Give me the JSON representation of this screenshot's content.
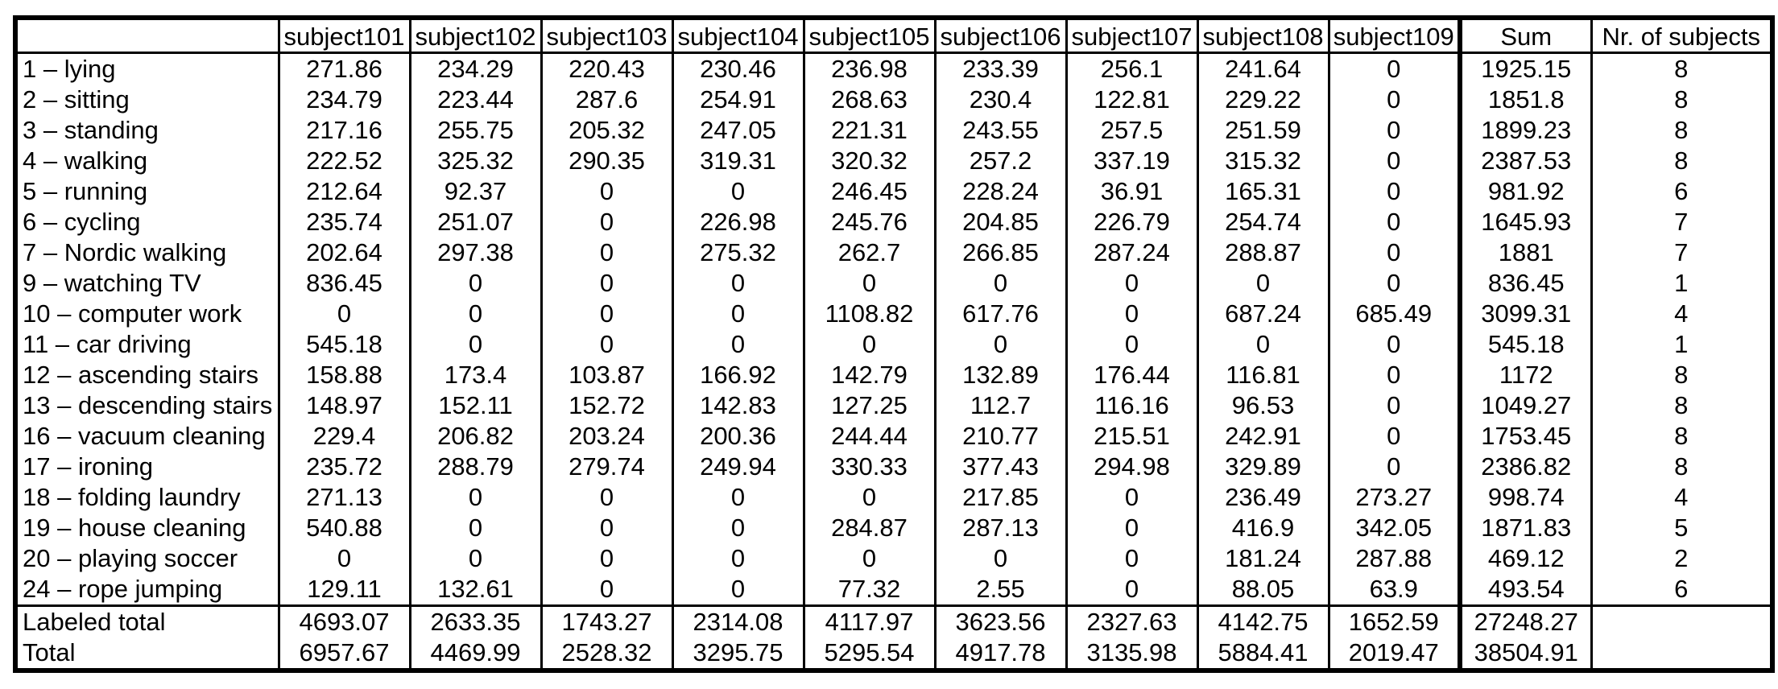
{
  "table": {
    "corner": "",
    "columns": [
      "subject101",
      "subject102",
      "subject103",
      "subject104",
      "subject105",
      "subject106",
      "subject107",
      "subject108",
      "subject109",
      "Sum",
      "Nr. of subjects"
    ],
    "rows": [
      {
        "activity": "1 – lying",
        "values": [
          "271.86",
          "234.29",
          "220.43",
          "230.46",
          "236.98",
          "233.39",
          "256.1",
          "241.64",
          "0",
          "1925.15",
          "8"
        ]
      },
      {
        "activity": "2 – sitting",
        "values": [
          "234.79",
          "223.44",
          "287.6",
          "254.91",
          "268.63",
          "230.4",
          "122.81",
          "229.22",
          "0",
          "1851.8",
          "8"
        ]
      },
      {
        "activity": "3 – standing",
        "values": [
          "217.16",
          "255.75",
          "205.32",
          "247.05",
          "221.31",
          "243.55",
          "257.5",
          "251.59",
          "0",
          "1899.23",
          "8"
        ]
      },
      {
        "activity": "4 – walking",
        "values": [
          "222.52",
          "325.32",
          "290.35",
          "319.31",
          "320.32",
          "257.2",
          "337.19",
          "315.32",
          "0",
          "2387.53",
          "8"
        ]
      },
      {
        "activity": "5 – running",
        "values": [
          "212.64",
          "92.37",
          "0",
          "0",
          "246.45",
          "228.24",
          "36.91",
          "165.31",
          "0",
          "981.92",
          "6"
        ]
      },
      {
        "activity": "6 – cycling",
        "values": [
          "235.74",
          "251.07",
          "0",
          "226.98",
          "245.76",
          "204.85",
          "226.79",
          "254.74",
          "0",
          "1645.93",
          "7"
        ]
      },
      {
        "activity": "7 – Nordic walking",
        "values": [
          "202.64",
          "297.38",
          "0",
          "275.32",
          "262.7",
          "266.85",
          "287.24",
          "288.87",
          "0",
          "1881",
          "7"
        ]
      },
      {
        "activity": "9 – watching TV",
        "values": [
          "836.45",
          "0",
          "0",
          "0",
          "0",
          "0",
          "0",
          "0",
          "0",
          "836.45",
          "1"
        ]
      },
      {
        "activity": "10 – computer work",
        "values": [
          "0",
          "0",
          "0",
          "0",
          "1108.82",
          "617.76",
          "0",
          "687.24",
          "685.49",
          "3099.31",
          "4"
        ]
      },
      {
        "activity": "11 – car driving",
        "values": [
          "545.18",
          "0",
          "0",
          "0",
          "0",
          "0",
          "0",
          "0",
          "0",
          "545.18",
          "1"
        ]
      },
      {
        "activity": "12 – ascending stairs",
        "values": [
          "158.88",
          "173.4",
          "103.87",
          "166.92",
          "142.79",
          "132.89",
          "176.44",
          "116.81",
          "0",
          "1172",
          "8"
        ]
      },
      {
        "activity": "13 – descending stairs",
        "values": [
          "148.97",
          "152.11",
          "152.72",
          "142.83",
          "127.25",
          "112.7",
          "116.16",
          "96.53",
          "0",
          "1049.27",
          "8"
        ]
      },
      {
        "activity": "16 – vacuum cleaning",
        "values": [
          "229.4",
          "206.82",
          "203.24",
          "200.36",
          "244.44",
          "210.77",
          "215.51",
          "242.91",
          "0",
          "1753.45",
          "8"
        ]
      },
      {
        "activity": "17 – ironing",
        "values": [
          "235.72",
          "288.79",
          "279.74",
          "249.94",
          "330.33",
          "377.43",
          "294.98",
          "329.89",
          "0",
          "2386.82",
          "8"
        ]
      },
      {
        "activity": "18 – folding laundry",
        "values": [
          "271.13",
          "0",
          "0",
          "0",
          "0",
          "217.85",
          "0",
          "236.49",
          "273.27",
          "998.74",
          "4"
        ]
      },
      {
        "activity": "19 – house cleaning",
        "values": [
          "540.88",
          "0",
          "0",
          "0",
          "284.87",
          "287.13",
          "0",
          "416.9",
          "342.05",
          "1871.83",
          "5"
        ]
      },
      {
        "activity": "20 – playing soccer",
        "values": [
          "0",
          "0",
          "0",
          "0",
          "0",
          "0",
          "0",
          "181.24",
          "287.88",
          "469.12",
          "2"
        ]
      },
      {
        "activity": "24 – rope jumping",
        "values": [
          "129.11",
          "132.61",
          "0",
          "0",
          "77.32",
          "2.55",
          "0",
          "88.05",
          "63.9",
          "493.54",
          "6"
        ]
      }
    ],
    "totals": [
      {
        "label": "Labeled total",
        "values": [
          "4693.07",
          "2633.35",
          "1743.27",
          "2314.08",
          "4117.97",
          "3623.56",
          "2327.63",
          "4142.75",
          "1652.59",
          "27248.27",
          ""
        ]
      },
      {
        "label": "Total",
        "values": [
          "6957.67",
          "4469.99",
          "2528.32",
          "3295.75",
          "5295.54",
          "4917.78",
          "3135.98",
          "5884.41",
          "2019.47",
          "38504.91",
          ""
        ]
      }
    ]
  }
}
